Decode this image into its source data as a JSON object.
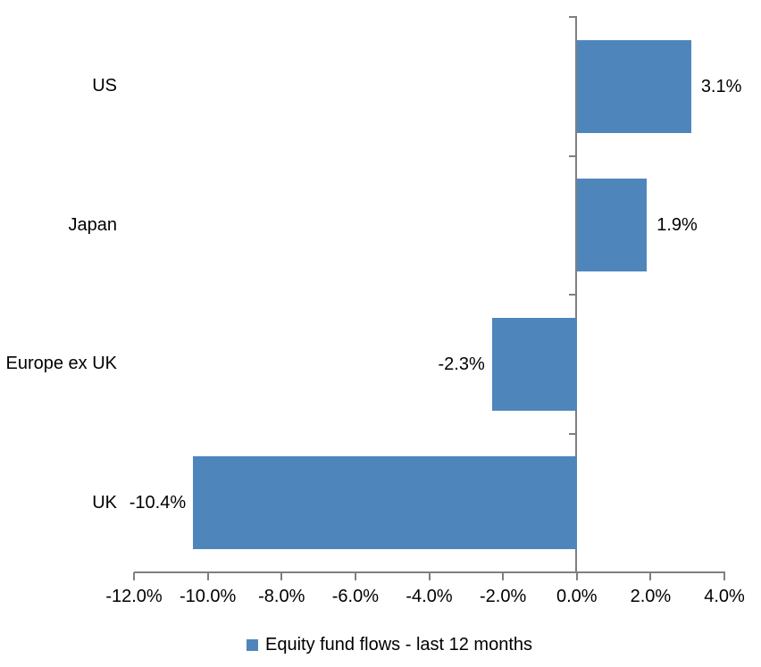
{
  "chart_data": {
    "type": "bar",
    "orientation": "horizontal",
    "title": "",
    "categories": [
      "US",
      "Japan",
      "Europe ex UK",
      "UK"
    ],
    "values": [
      3.1,
      1.9,
      -2.3,
      -10.4
    ],
    "data_labels": [
      "3.1%",
      "1.9%",
      "-2.3%",
      "-10.4%"
    ],
    "series_name": "Equity fund flows - last 12 months",
    "xlabel": "",
    "ylabel": "",
    "xlim": [
      -12,
      4
    ],
    "x_ticks": [
      -12,
      -10,
      -8,
      -6,
      -4,
      -2,
      0,
      2,
      4
    ],
    "x_tick_labels": [
      "-12.0%",
      "-10.0%",
      "-8.0%",
      "-6.0%",
      "-4.0%",
      "-2.0%",
      "0.0%",
      "2.0%",
      "4.0%"
    ],
    "grid": false,
    "legend_position": "bottom",
    "bar_color": "#4E86BC",
    "axis_color": "#7F7F7F",
    "text_color": "#000000"
  },
  "legend": {
    "label": "Equity fund flows - last 12 months",
    "swatch_color": "#4E86BC"
  }
}
